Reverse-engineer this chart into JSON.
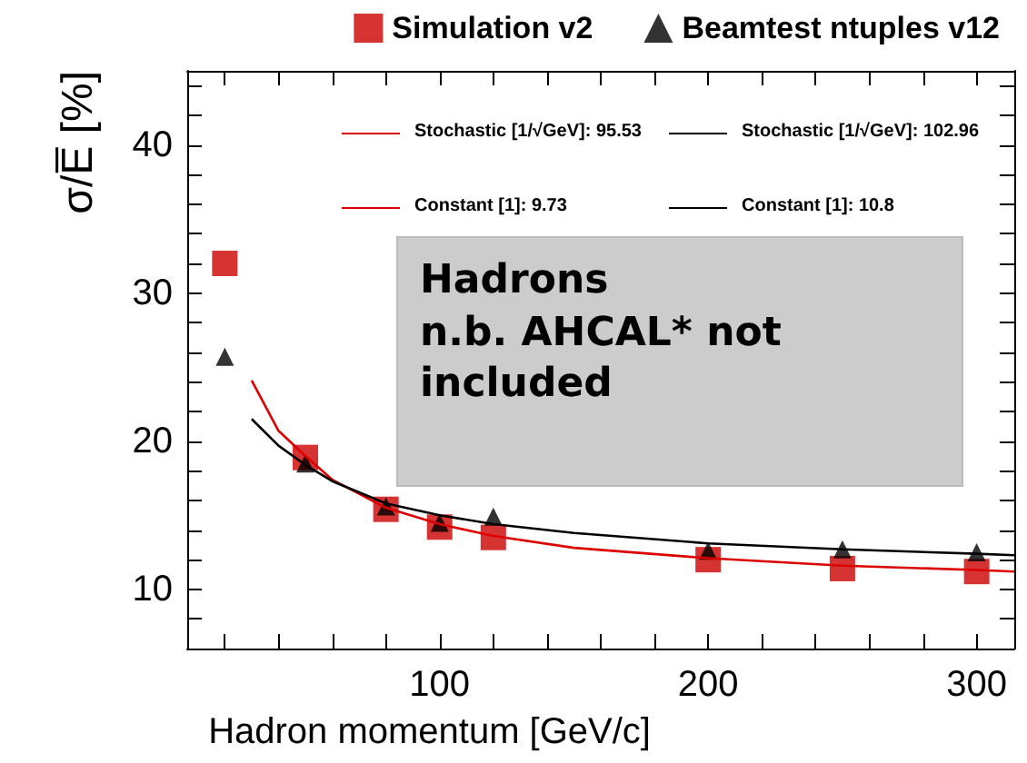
{
  "chart_data": {
    "type": "scatter",
    "xlabel": "Hadron momentum [GeV/c]",
    "ylabel": "σ/E̅ [%]",
    "xlim": [
      6,
      314
    ],
    "ylim": [
      6,
      45
    ],
    "xticks": [
      {
        "value": 20,
        "label": null
      },
      {
        "value": 40,
        "label": null
      },
      {
        "value": 60,
        "label": null
      },
      {
        "value": 80,
        "label": null
      },
      100,
      {
        "value": 120,
        "label": null
      },
      {
        "value": 140,
        "label": null
      },
      {
        "value": 160,
        "label": null
      },
      {
        "value": 180,
        "label": null
      },
      200,
      {
        "value": 220,
        "label": null
      },
      {
        "value": 240,
        "label": null
      },
      {
        "value": 260,
        "label": null
      },
      {
        "value": 280,
        "label": null
      },
      300
    ],
    "yticks": [
      {
        "value": 8,
        "label": null
      },
      10,
      {
        "value": 12,
        "label": null
      },
      {
        "value": 14,
        "label": null
      },
      {
        "value": 16,
        "label": null
      },
      {
        "value": 18,
        "label": null
      },
      20,
      {
        "value": 22,
        "label": null
      },
      {
        "value": 24,
        "label": null
      },
      {
        "value": 26,
        "label": null
      },
      {
        "value": 28,
        "label": null
      },
      30,
      {
        "value": 32,
        "label": null
      },
      {
        "value": 34,
        "label": null
      },
      {
        "value": 36,
        "label": null
      },
      {
        "value": 38,
        "label": null
      },
      40,
      {
        "value": 42,
        "label": null
      },
      {
        "value": 44,
        "label": null
      }
    ],
    "grid": false,
    "legend": "top right",
    "x": [
      20,
      50,
      80,
      100,
      120,
      200,
      250,
      300
    ],
    "series": [
      {
        "name": "Simulation v2",
        "type": "scatter",
        "marker": "square",
        "color": "#cc0000",
        "values": [
          32.0,
          18.9,
          15.4,
          14.2,
          13.5,
          12.0,
          11.4,
          11.2
        ]
      },
      {
        "name": "Beamtest ntuples v12",
        "type": "scatter",
        "marker": "triangle",
        "color": "#000000",
        "values": [
          25.7,
          18.5,
          15.6,
          14.5,
          14.9,
          12.6,
          12.7,
          12.5
        ]
      },
      {
        "type": "line",
        "marker": "none",
        "line_style": "solid",
        "color": "#dd0000",
        "x": [
          30,
          40,
          50,
          60,
          80,
          100,
          120,
          150,
          200,
          250,
          300,
          314
        ],
        "values": [
          24.1,
          20.7,
          19.0,
          17.4,
          15.5,
          14.4,
          13.6,
          12.8,
          12.1,
          11.6,
          11.3,
          11.2
        ]
      },
      {
        "type": "line",
        "marker": "none",
        "line_style": "solid",
        "color": "#000000",
        "x": [
          30,
          40,
          50,
          60,
          80,
          100,
          120,
          150,
          200,
          250,
          300,
          314
        ],
        "values": [
          21.5,
          19.7,
          18.4,
          17.3,
          15.8,
          15.0,
          14.4,
          13.8,
          13.1,
          12.7,
          12.4,
          12.3
        ]
      }
    ],
    "annotations": [
      "Stochastic [1/√GeV]: 95.53",
      "Stochastic [1/√GeV]: 102.96",
      "Constant [1]: 9.73",
      "Constant [1]: 10.8",
      "Hadrons\nn.b. AHCAL* not\nincluded"
    ]
  }
}
